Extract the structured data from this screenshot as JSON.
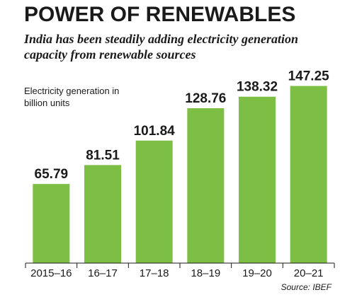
{
  "title": "POWER OF RENEWABLES",
  "subtitle": "India has been steadily adding electricity generation capacity from renewable sources",
  "source": "Source: IBEF",
  "colors": {
    "bar": "#7dbf45",
    "text": "#1a1a1a",
    "axis": "#1a1a1a"
  },
  "chart_data": {
    "type": "bar",
    "ylabel": "Electricity generation in billion units",
    "xlabel": "",
    "categories": [
      "2015–16",
      "16–17",
      "17–18",
      "18–19",
      "19–20",
      "20–21"
    ],
    "values": [
      65.79,
      81.51,
      101.84,
      128.76,
      138.32,
      147.25
    ],
    "value_labels": [
      "65.79",
      "81.51",
      "101.84",
      "128.76",
      "138.32",
      "147.25"
    ],
    "ylim": [
      0,
      150
    ],
    "grid": false,
    "legend": "none"
  }
}
